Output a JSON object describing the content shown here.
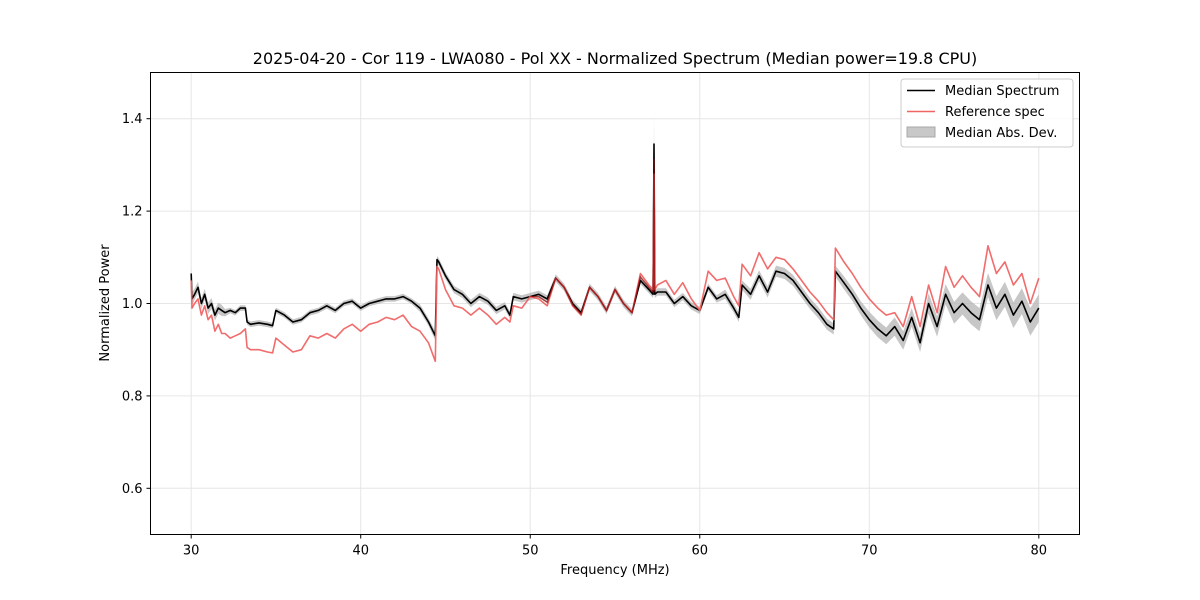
{
  "chart_data": {
    "type": "line",
    "title": "2025-04-20 - Cor 119 - LWA080 - Pol XX - Normalized Spectrum (Median power=19.8 CPU)",
    "xlabel": "Frequency (MHz)",
    "ylabel": "Normalized Power",
    "xlim": [
      27.6,
      82.4
    ],
    "ylim": [
      0.5,
      1.5
    ],
    "xticks": [
      30,
      40,
      50,
      60,
      70,
      80
    ],
    "yticks": [
      0.6,
      0.8,
      1.0,
      1.2,
      1.4
    ],
    "grid": true,
    "legend_position": "top-right",
    "legend": [
      "Median Spectrum",
      "Reference spec",
      "Median Abs. Dev."
    ],
    "colors": {
      "median": "#000000",
      "reference": "#f06464",
      "mad_band": "#b4b4b4",
      "overlap": "#8b0000"
    },
    "series": [
      {
        "name": "Median Spectrum",
        "x": [
          30.0,
          30.05,
          30.2,
          30.4,
          30.6,
          30.8,
          31.0,
          31.2,
          31.4,
          31.6,
          31.8,
          32.0,
          32.3,
          32.6,
          32.9,
          33.2,
          33.3,
          33.5,
          34.0,
          34.5,
          34.8,
          35.0,
          35.5,
          36.0,
          36.5,
          37.0,
          37.5,
          38.0,
          38.5,
          39.0,
          39.5,
          40.0,
          40.5,
          41.0,
          41.5,
          42.0,
          42.5,
          43.0,
          43.5,
          44.0,
          44.4,
          44.5,
          44.6,
          45.0,
          45.5,
          46.0,
          46.5,
          47.0,
          47.5,
          48.0,
          48.5,
          48.8,
          49.0,
          49.5,
          50.0,
          50.5,
          51.0,
          51.5,
          52.0,
          52.5,
          53.0,
          53.5,
          54.0,
          54.5,
          55.0,
          55.5,
          56.0,
          56.5,
          57.0,
          57.25,
          57.3,
          57.35,
          57.5,
          58.0,
          58.5,
          59.0,
          59.5,
          60.0,
          60.5,
          61.0,
          61.5,
          62.0,
          62.3,
          62.5,
          63.0,
          63.5,
          64.0,
          64.5,
          65.0,
          65.5,
          66.0,
          66.5,
          67.0,
          67.5,
          67.9,
          68.0,
          68.5,
          69.0,
          69.5,
          70.0,
          70.5,
          71.0,
          71.5,
          72.0,
          72.5,
          73.0,
          73.5,
          74.0,
          74.5,
          75.0,
          75.5,
          76.0,
          76.5,
          77.0,
          77.5,
          78.0,
          78.5,
          79.0,
          79.5,
          80.0
        ],
        "y": [
          1.065,
          1.01,
          1.02,
          1.035,
          1.0,
          1.02,
          0.99,
          1.0,
          0.975,
          0.99,
          0.985,
          0.98,
          0.985,
          0.98,
          0.99,
          0.99,
          0.96,
          0.955,
          0.958,
          0.955,
          0.952,
          0.985,
          0.975,
          0.96,
          0.965,
          0.98,
          0.985,
          0.995,
          0.985,
          1.0,
          1.005,
          0.99,
          1.0,
          1.005,
          1.01,
          1.01,
          1.015,
          1.005,
          0.99,
          0.96,
          0.93,
          1.095,
          1.09,
          1.06,
          1.03,
          1.02,
          1.0,
          1.015,
          1.005,
          0.985,
          0.995,
          0.975,
          1.015,
          1.01,
          1.015,
          1.02,
          1.01,
          1.055,
          1.035,
          1.0,
          0.98,
          1.035,
          1.015,
          0.985,
          1.03,
          1.0,
          0.98,
          1.05,
          1.03,
          1.02,
          1.345,
          1.02,
          1.025,
          1.025,
          1.0,
          1.015,
          0.995,
          0.985,
          1.035,
          1.01,
          1.02,
          0.99,
          0.97,
          1.04,
          1.02,
          1.06,
          1.025,
          1.07,
          1.065,
          1.05,
          1.025,
          1.0,
          0.98,
          0.955,
          0.945,
          1.07,
          1.045,
          1.02,
          0.99,
          0.965,
          0.945,
          0.93,
          0.95,
          0.92,
          0.97,
          0.915,
          1.0,
          0.95,
          1.02,
          0.98,
          1.0,
          0.98,
          0.965,
          1.04,
          0.99,
          1.02,
          0.975,
          1.005,
          0.96,
          0.99
        ]
      },
      {
        "name": "Reference spec",
        "x": [
          30.0,
          30.05,
          30.2,
          30.4,
          30.6,
          30.8,
          31.0,
          31.2,
          31.4,
          31.6,
          31.8,
          32.0,
          32.3,
          32.6,
          32.9,
          33.2,
          33.3,
          33.5,
          34.0,
          34.5,
          34.8,
          35.0,
          35.5,
          36.0,
          36.5,
          37.0,
          37.5,
          38.0,
          38.5,
          39.0,
          39.5,
          40.0,
          40.5,
          41.0,
          41.5,
          42.0,
          42.5,
          43.0,
          43.5,
          44.0,
          44.4,
          44.5,
          44.6,
          45.0,
          45.5,
          46.0,
          46.5,
          47.0,
          47.5,
          48.0,
          48.5,
          48.8,
          49.0,
          49.5,
          50.0,
          50.5,
          51.0,
          51.5,
          52.0,
          52.5,
          53.0,
          53.5,
          54.0,
          54.5,
          55.0,
          55.5,
          56.0,
          56.5,
          57.0,
          57.25,
          57.3,
          57.35,
          57.5,
          58.0,
          58.5,
          59.0,
          59.5,
          60.0,
          60.5,
          61.0,
          61.5,
          62.0,
          62.3,
          62.5,
          63.0,
          63.5,
          64.0,
          64.5,
          65.0,
          65.5,
          66.0,
          66.5,
          67.0,
          67.5,
          67.9,
          68.0,
          68.5,
          69.0,
          69.5,
          70.0,
          70.5,
          71.0,
          71.5,
          72.0,
          72.5,
          73.0,
          73.5,
          74.0,
          74.5,
          75.0,
          75.5,
          76.0,
          76.5,
          77.0,
          77.5,
          78.0,
          78.5,
          79.0,
          79.5,
          80.0
        ],
        "y": [
          1.05,
          0.99,
          1.0,
          1.01,
          0.975,
          0.995,
          0.965,
          0.975,
          0.94,
          0.955,
          0.935,
          0.935,
          0.925,
          0.93,
          0.935,
          0.945,
          0.905,
          0.9,
          0.9,
          0.895,
          0.893,
          0.925,
          0.91,
          0.895,
          0.9,
          0.93,
          0.925,
          0.935,
          0.925,
          0.945,
          0.955,
          0.94,
          0.955,
          0.96,
          0.97,
          0.965,
          0.975,
          0.95,
          0.94,
          0.915,
          0.875,
          1.08,
          1.075,
          1.03,
          0.995,
          0.99,
          0.975,
          0.99,
          0.975,
          0.955,
          0.97,
          0.96,
          0.995,
          0.99,
          1.015,
          1.01,
          0.995,
          1.055,
          1.035,
          0.995,
          0.975,
          1.035,
          1.015,
          0.985,
          1.03,
          1.0,
          0.98,
          1.065,
          1.04,
          1.03,
          1.28,
          1.03,
          1.04,
          1.05,
          1.02,
          1.045,
          1.01,
          0.985,
          1.07,
          1.05,
          1.055,
          1.015,
          0.995,
          1.085,
          1.06,
          1.11,
          1.075,
          1.1,
          1.095,
          1.075,
          1.05,
          1.025,
          1.005,
          0.98,
          0.965,
          1.12,
          1.09,
          1.065,
          1.035,
          1.01,
          0.99,
          0.975,
          0.98,
          0.95,
          1.015,
          0.95,
          1.04,
          0.98,
          1.08,
          1.035,
          1.06,
          1.035,
          1.015,
          1.125,
          1.065,
          1.09,
          1.04,
          1.065,
          1.0,
          1.055
        ]
      }
    ],
    "mad_band_halfwidth": [
      0.012,
      0.015,
      0.012,
      0.012,
      0.012,
      0.012,
      0.012,
      0.012,
      0.012,
      0.012,
      0.012,
      0.008,
      0.006,
      0.006,
      0.006,
      0.006,
      0.006,
      0.006,
      0.006,
      0.006,
      0.006,
      0.006,
      0.006,
      0.006,
      0.006,
      0.006,
      0.006,
      0.006,
      0.006,
      0.006,
      0.006,
      0.006,
      0.006,
      0.006,
      0.006,
      0.006,
      0.006,
      0.006,
      0.008,
      0.008,
      0.01,
      0.008,
      0.008,
      0.008,
      0.008,
      0.008,
      0.008,
      0.008,
      0.008,
      0.008,
      0.008,
      0.008,
      0.008,
      0.008,
      0.008,
      0.008,
      0.008,
      0.008,
      0.008,
      0.008,
      0.008,
      0.008,
      0.008,
      0.008,
      0.008,
      0.008,
      0.008,
      0.008,
      0.008,
      0.008,
      0.065,
      0.008,
      0.008,
      0.008,
      0.008,
      0.008,
      0.008,
      0.008,
      0.008,
      0.008,
      0.01,
      0.01,
      0.01,
      0.01,
      0.012,
      0.012,
      0.012,
      0.012,
      0.012,
      0.012,
      0.012,
      0.012,
      0.012,
      0.012,
      0.012,
      0.012,
      0.014,
      0.014,
      0.015,
      0.017,
      0.018,
      0.018,
      0.02,
      0.02,
      0.02,
      0.02,
      0.022,
      0.022,
      0.022,
      0.024,
      0.024,
      0.025,
      0.025,
      0.026,
      0.026,
      0.027,
      0.028,
      0.028,
      0.03,
      0.03
    ]
  }
}
